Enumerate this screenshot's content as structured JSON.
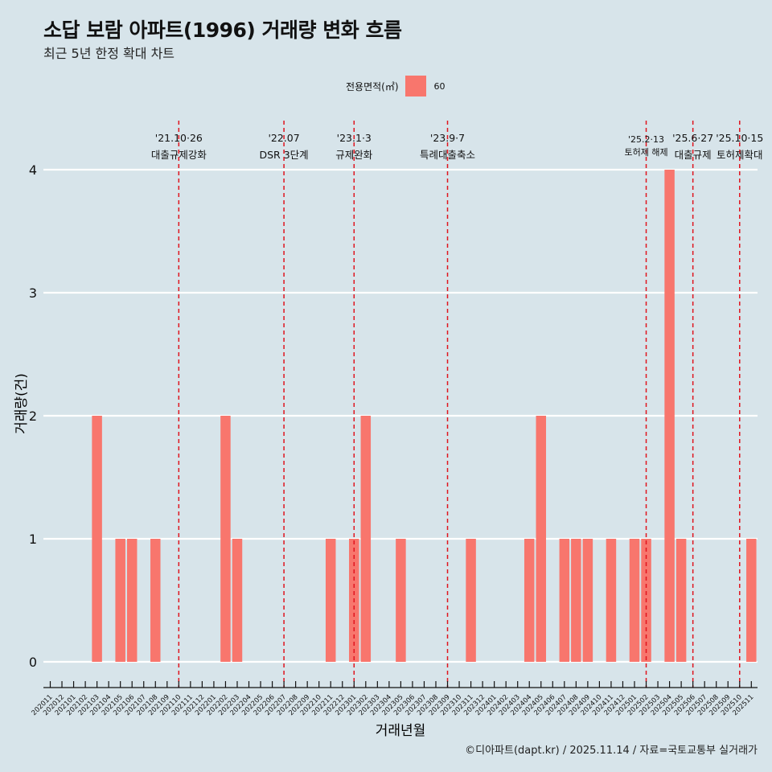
{
  "title": "소답 보람 아파트(1996) 거래량 변화 흐름",
  "subtitle": "최근 5년 한정 확대 차트",
  "legend": {
    "title": "전용면적(㎡)",
    "label": "60",
    "color": "#f8766d"
  },
  "caption": "©디아파트(dapt.kr) / 2025.11.14 / 자료=국토교통부 실거래가",
  "colors": {
    "background": "#d7e4ea",
    "bar": "#f8766d",
    "event_line": "#e0141e",
    "grid": "#ffffff"
  },
  "chart_data": {
    "type": "bar",
    "title": "소답 보람 아파트(1996) 거래량 변화 흐름",
    "xlabel": "거래년월",
    "ylabel": "거래량(건)",
    "ylim": [
      0,
      4
    ],
    "yticks": [
      0,
      1,
      2,
      3,
      4
    ],
    "categories": [
      "202011",
      "202012",
      "202101",
      "202102",
      "202103",
      "202104",
      "202105",
      "202106",
      "202107",
      "202108",
      "202109",
      "202110",
      "202111",
      "202112",
      "202201",
      "202202",
      "202203",
      "202204",
      "202205",
      "202206",
      "202207",
      "202208",
      "202209",
      "202210",
      "202211",
      "202212",
      "202301",
      "202302",
      "202303",
      "202304",
      "202305",
      "202306",
      "202307",
      "202308",
      "202309",
      "202310",
      "202311",
      "202312",
      "202401",
      "202402",
      "202403",
      "202404",
      "202405",
      "202406",
      "202407",
      "202408",
      "202409",
      "202410",
      "202411",
      "202412",
      "202501",
      "202502",
      "202503",
      "202504",
      "202505",
      "202506",
      "202507",
      "202508",
      "202509",
      "202510",
      "202511"
    ],
    "series": [
      {
        "name": "60",
        "values": [
          0,
          0,
          0,
          0,
          2,
          0,
          1,
          1,
          0,
          1,
          0,
          0,
          0,
          0,
          0,
          2,
          1,
          0,
          0,
          0,
          0,
          0,
          0,
          0,
          1,
          0,
          1,
          2,
          0,
          0,
          1,
          0,
          0,
          0,
          0,
          0,
          1,
          0,
          0,
          0,
          0,
          1,
          2,
          0,
          1,
          1,
          1,
          0,
          1,
          0,
          1,
          1,
          0,
          4,
          1,
          0,
          0,
          0,
          0,
          0,
          1
        ]
      }
    ],
    "events": [
      {
        "date": "'21.10·26",
        "label": "대출규제강화",
        "month": "202110",
        "size": "normal"
      },
      {
        "date": "'22.07",
        "label": "DSR 3단계",
        "month": "202207",
        "size": "normal"
      },
      {
        "date": "'23.1·3",
        "label": "규제완화",
        "month": "202301",
        "size": "normal"
      },
      {
        "date": "'23.9·7",
        "label": "특례대출축소",
        "month": "202309",
        "size": "normal"
      },
      {
        "date": "'25.2·13",
        "label": "토허제 해제",
        "month": "202502",
        "size": "small"
      },
      {
        "date": "'25.6·27",
        "label": "대출규제",
        "month": "202506",
        "size": "normal"
      },
      {
        "date": "'25.10·15",
        "label": "토허제확대",
        "month": "202510",
        "size": "normal"
      }
    ]
  }
}
